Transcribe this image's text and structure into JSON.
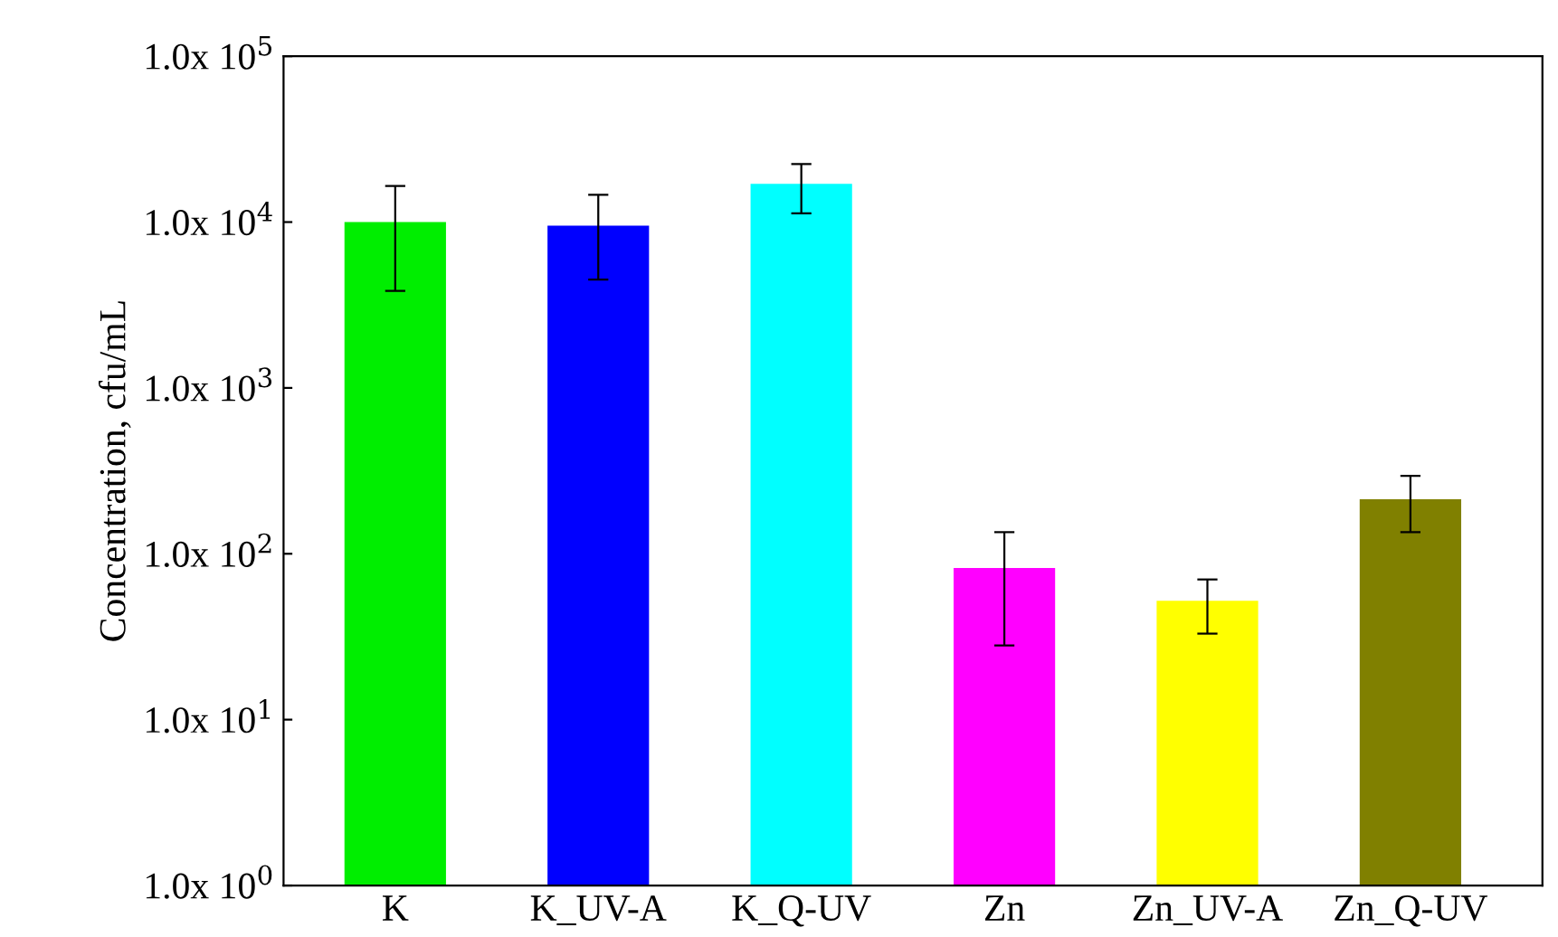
{
  "chart_data": {
    "type": "bar",
    "ylabel": "Concentration, cfu/mL",
    "categories": [
      "K",
      "K_UV-A",
      "K_Q-UV",
      "Zn",
      "Zn_UV-A",
      "Zn_Q-UV"
    ],
    "values": [
      10000,
      9500,
      17000,
      82,
      52,
      213
    ],
    "errors": [
      [
        3850,
        16500
      ],
      [
        4500,
        14600
      ],
      [
        11300,
        22400
      ],
      [
        28,
        135
      ],
      [
        33,
        70
      ],
      [
        135,
        295
      ]
    ],
    "colors": [
      "#00ee00",
      "#0000ff",
      "#00ffff",
      "#ff00ff",
      "#ffff00",
      "#808000"
    ],
    "log": "y",
    "ylim": [
      1,
      100000
    ],
    "yticks": [
      {
        "value": 1,
        "label": "1.0x 10$^{0}$"
      },
      {
        "value": 10,
        "label": "1.0x 10$^{1}$"
      },
      {
        "value": 100,
        "label": "1.0x 10$^{2}$"
      },
      {
        "value": 1000,
        "label": "1.0x 10$^{3}$"
      },
      {
        "value": 10000,
        "label": "1.0x 10$^{4}$"
      },
      {
        "value": 100000,
        "label": "1.0x 10$^{5}$"
      }
    ],
    "grid": false,
    "legend": false
  }
}
